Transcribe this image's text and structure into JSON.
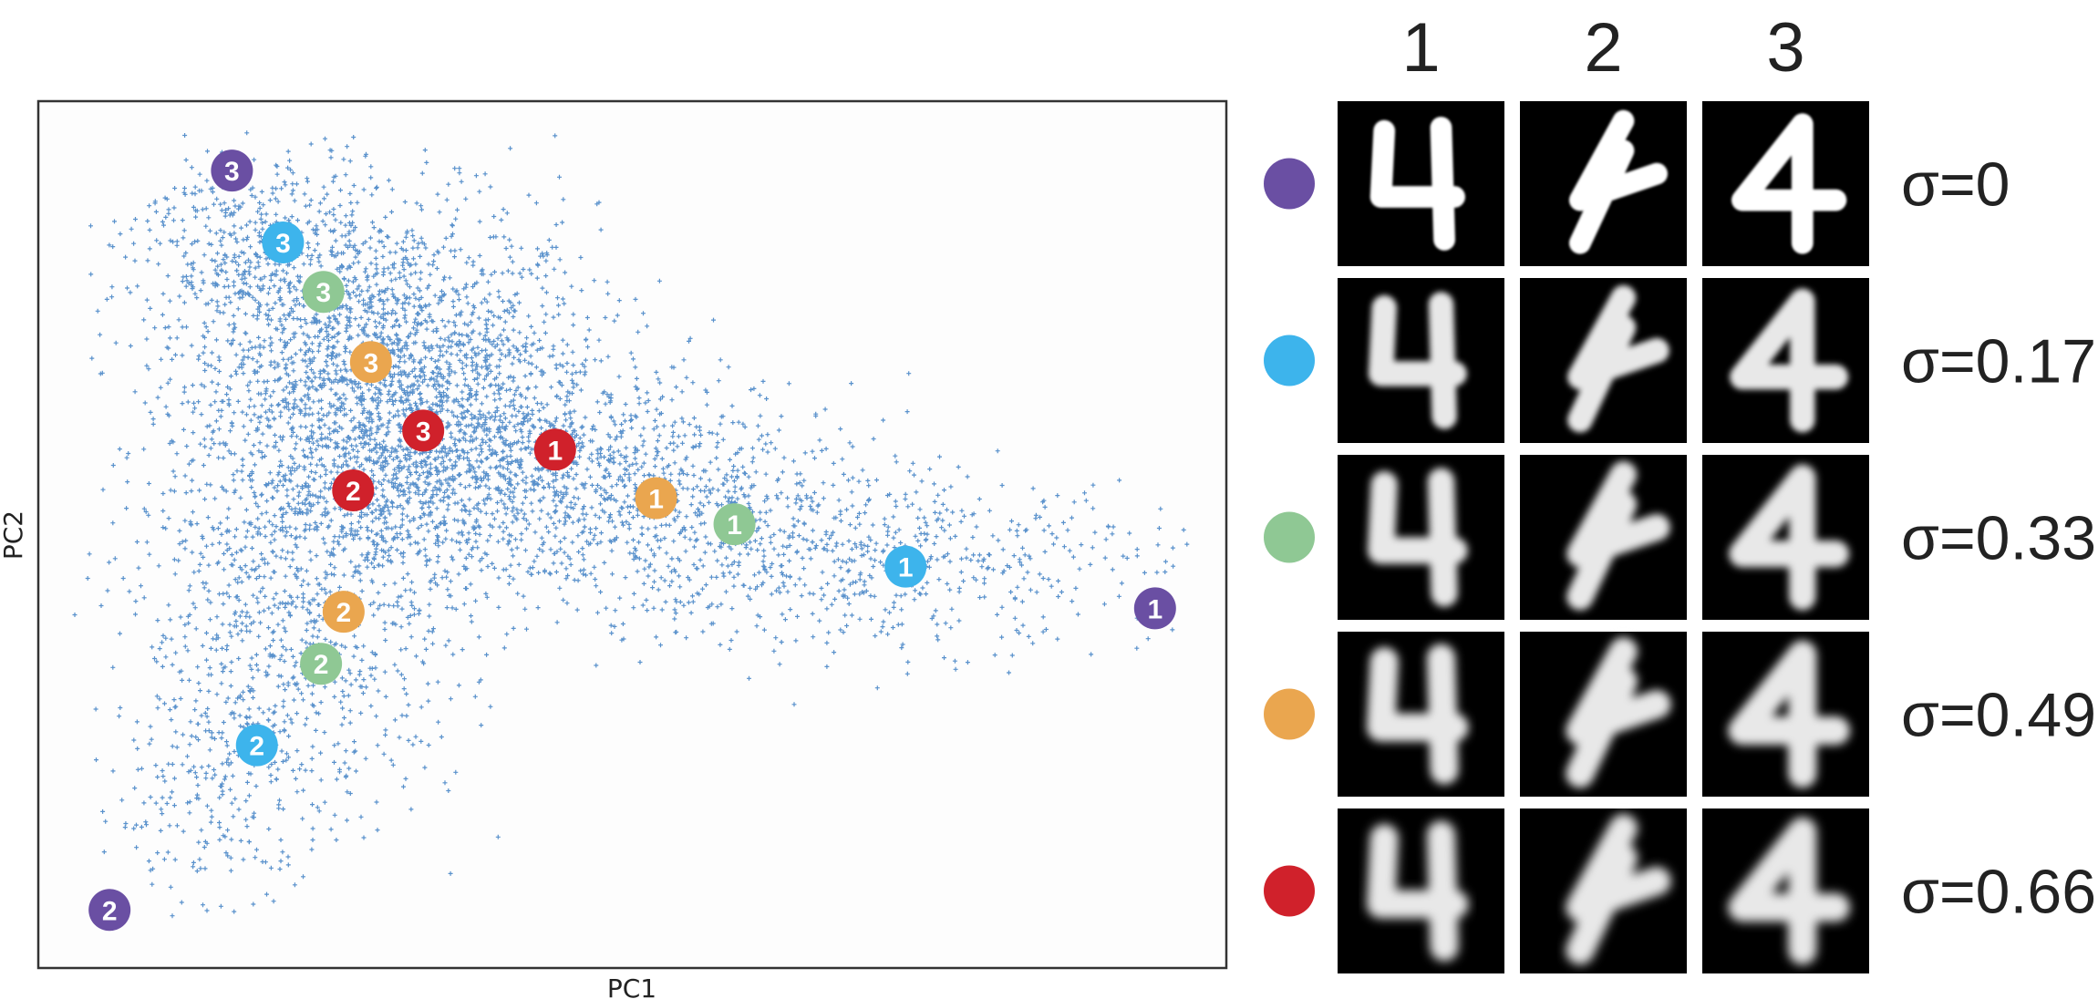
{
  "chart_data": {
    "type": "scatter",
    "xlabel": "PC1",
    "ylabel": "PC2",
    "xlim": [
      0,
      1
    ],
    "ylim": [
      0,
      1
    ],
    "grid": false,
    "column_labels": [
      "1",
      "2",
      "3"
    ],
    "series": [
      {
        "sigma_label": "σ=0",
        "color": "#6a4fa3",
        "points": [
          {
            "label": "1",
            "x": 0.94,
            "y": 0.415
          },
          {
            "label": "2",
            "x": 0.06,
            "y": 0.067
          },
          {
            "label": "3",
            "x": 0.163,
            "y": 0.92
          }
        ]
      },
      {
        "sigma_label": "σ=0.17",
        "color": "#3db4ec",
        "points": [
          {
            "label": "1",
            "x": 0.73,
            "y": 0.463
          },
          {
            "label": "2",
            "x": 0.184,
            "y": 0.257
          },
          {
            "label": "3",
            "x": 0.206,
            "y": 0.837
          }
        ]
      },
      {
        "sigma_label": "σ=0.33",
        "color": "#8fc894",
        "points": [
          {
            "label": "1",
            "x": 0.586,
            "y": 0.512
          },
          {
            "label": "2",
            "x": 0.238,
            "y": 0.351
          },
          {
            "label": "3",
            "x": 0.24,
            "y": 0.78
          }
        ]
      },
      {
        "sigma_label": "σ=0.49",
        "color": "#eaa64f",
        "points": [
          {
            "label": "1",
            "x": 0.52,
            "y": 0.542
          },
          {
            "label": "2",
            "x": 0.257,
            "y": 0.411
          },
          {
            "label": "3",
            "x": 0.28,
            "y": 0.699
          }
        ]
      },
      {
        "sigma_label": "σ=0.66",
        "color": "#d0212b",
        "points": [
          {
            "label": "1",
            "x": 0.435,
            "y": 0.598
          },
          {
            "label": "2",
            "x": 0.265,
            "y": 0.551
          },
          {
            "label": "3",
            "x": 0.324,
            "y": 0.62
          }
        ]
      }
    ],
    "background_scatter": {
      "color": "#3d7fc4",
      "description_points": 6000,
      "x_range": [
        0.03,
        0.97
      ],
      "y_range": [
        0.06,
        0.97
      ]
    }
  }
}
